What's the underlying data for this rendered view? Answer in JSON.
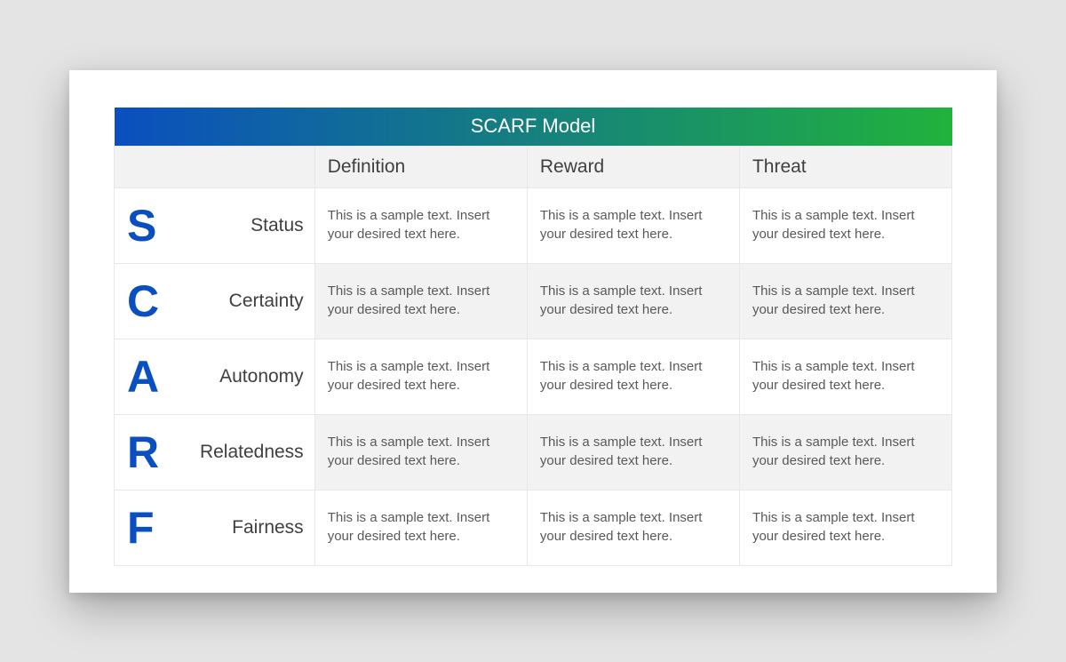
{
  "title": "SCARF Model",
  "title_gradient_from": "#0a4fbf",
  "title_gradient_to": "#21b23c",
  "letter_color": "#0a4fbf",
  "border_color": "#e8e8e8",
  "alt_row_bg": "#f2f2f2",
  "header_bg": "#f2f2f2",
  "columns": [
    "Definition",
    "Reward",
    "Threat"
  ],
  "rows": [
    {
      "letter": "S",
      "term": "Status",
      "definition": "This is a sample text. Insert your desired text here.",
      "reward": "This is a sample text. Insert your desired text here.",
      "threat": "This is a sample text. Insert your desired text here."
    },
    {
      "letter": "C",
      "term": "Certainty",
      "definition": "This is a sample text. Insert your desired text here.",
      "reward": "This is a sample text. Insert your desired text here.",
      "threat": "This is a sample text. Insert your desired text here."
    },
    {
      "letter": "A",
      "term": "Autonomy",
      "definition": "This is a sample text. Insert your desired text here.",
      "reward": "This is a sample text. Insert your desired text here.",
      "threat": "This is a sample text. Insert your desired text here."
    },
    {
      "letter": "R",
      "term": "Relatedness",
      "definition": "This is a sample text. Insert your desired text here.",
      "reward": "This is a sample text. Insert your desired text here.",
      "threat": "This is a sample text. Insert your desired text here."
    },
    {
      "letter": "F",
      "term": "Fairness",
      "definition": "This is a sample text. Insert your desired text here.",
      "reward": "This is a sample text. Insert your desired text here.",
      "threat": "This is a sample text. Insert your desired text here."
    }
  ]
}
